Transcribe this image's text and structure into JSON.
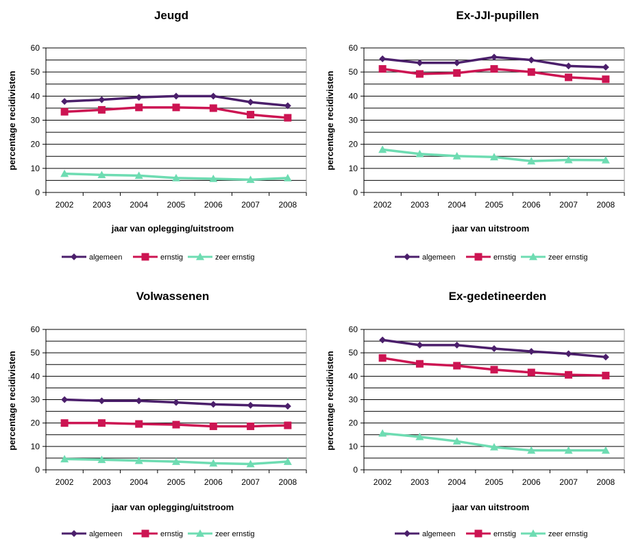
{
  "colors": {
    "algemeen": "#4b1f6b",
    "ernstig": "#cc1452",
    "zeer_ernstig": "#6edcb2"
  },
  "chart_data": [
    {
      "type": "line",
      "title": "Jeugd",
      "xlabel": "jaar van oplegging/uitstroom",
      "ylabel": "percentage recidivisten",
      "categories": [
        "2002",
        "2003",
        "2004",
        "2005",
        "2006",
        "2007",
        "2008"
      ],
      "ylim": [
        0,
        60
      ],
      "yticks": [
        0,
        10,
        20,
        30,
        40,
        50,
        60
      ],
      "grid": true,
      "legend": "bottom",
      "series": [
        {
          "name": "algemeen",
          "marker": "diamond",
          "values": [
            37.8,
            38.5,
            39.5,
            40.0,
            40.0,
            37.5,
            36.0
          ]
        },
        {
          "name": "ernstig",
          "marker": "square",
          "values": [
            33.5,
            34.3,
            35.3,
            35.3,
            35.0,
            32.3,
            31.0
          ]
        },
        {
          "name": "zeer ernstig",
          "marker": "triangle",
          "values": [
            7.8,
            7.3,
            7.0,
            6.0,
            5.7,
            5.3,
            6.0
          ]
        }
      ]
    },
    {
      "type": "line",
      "title": "Ex-JJI-pupillen",
      "xlabel": "jaar van uitstroom",
      "ylabel": "percentage recidivisten",
      "categories": [
        "2002",
        "2003",
        "2004",
        "2005",
        "2006",
        "2007",
        "2008"
      ],
      "ylim": [
        0,
        60
      ],
      "yticks": [
        0,
        10,
        20,
        30,
        40,
        50,
        60
      ],
      "grid": true,
      "legend": "bottom",
      "series": [
        {
          "name": "algemeen",
          "marker": "diamond",
          "values": [
            55.5,
            53.8,
            53.8,
            56.2,
            55.0,
            52.5,
            52.0
          ]
        },
        {
          "name": "ernstig",
          "marker": "square",
          "values": [
            51.3,
            49.2,
            49.6,
            51.3,
            50.0,
            47.8,
            47.0
          ]
        },
        {
          "name": "zeer ernstig",
          "marker": "triangle",
          "values": [
            17.8,
            16.0,
            15.1,
            14.7,
            13.0,
            13.5,
            13.4
          ]
        }
      ]
    },
    {
      "type": "line",
      "title": "Volwassenen",
      "xlabel": "jaar van oplegging/uitstroom",
      "ylabel": "percentage recidivisten",
      "categories": [
        "2002",
        "2003",
        "2004",
        "2005",
        "2006",
        "2007",
        "2008"
      ],
      "ylim": [
        0,
        60
      ],
      "yticks": [
        0,
        10,
        20,
        30,
        40,
        50,
        60
      ],
      "grid": true,
      "legend": "bottom",
      "series": [
        {
          "name": "algemeen",
          "marker": "diamond",
          "values": [
            30.0,
            29.5,
            29.5,
            28.8,
            28.0,
            27.6,
            27.2
          ]
        },
        {
          "name": "ernstig",
          "marker": "square",
          "values": [
            20.0,
            20.0,
            19.6,
            19.3,
            18.6,
            18.6,
            19.0
          ]
        },
        {
          "name": "zeer ernstig",
          "marker": "triangle",
          "values": [
            4.6,
            4.3,
            3.9,
            3.5,
            2.8,
            2.5,
            3.5
          ]
        }
      ]
    },
    {
      "type": "line",
      "title": "Ex-gedetineerden",
      "xlabel": "jaar van uitstroom",
      "ylabel": "percentage recidivisten",
      "categories": [
        "2002",
        "2003",
        "2004",
        "2005",
        "2006",
        "2007",
        "2008"
      ],
      "ylim": [
        0,
        60
      ],
      "yticks": [
        0,
        10,
        20,
        30,
        40,
        50,
        60
      ],
      "grid": true,
      "legend": "bottom",
      "series": [
        {
          "name": "algemeen",
          "marker": "diamond",
          "values": [
            55.5,
            53.3,
            53.3,
            51.8,
            50.6,
            49.6,
            48.2
          ]
        },
        {
          "name": "ernstig",
          "marker": "square",
          "values": [
            47.8,
            45.3,
            44.5,
            42.8,
            41.6,
            40.6,
            40.3
          ]
        },
        {
          "name": "zeer ernstig",
          "marker": "triangle",
          "values": [
            15.6,
            14.1,
            12.2,
            9.7,
            8.3,
            8.3,
            8.3
          ]
        }
      ]
    }
  ]
}
